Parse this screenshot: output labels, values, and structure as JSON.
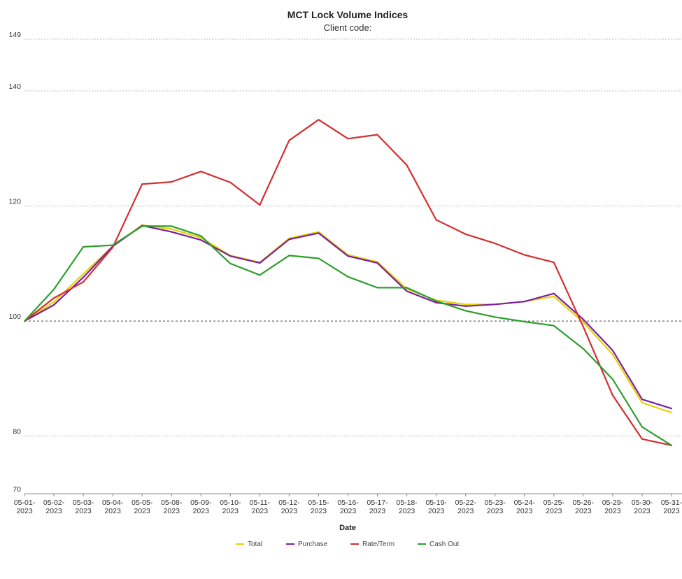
{
  "chart_data": {
    "type": "line",
    "title": "MCT Lock Volume Indices",
    "subtitle": "Client code:",
    "xlabel": "Date",
    "ylabel": "",
    "ylim": [
      70,
      149
    ],
    "yticks": [
      70,
      80,
      100,
      120,
      140,
      149
    ],
    "reference_line": 100,
    "grid": true,
    "legend_position": "bottom",
    "categories": [
      "05-01-2023",
      "05-02-2023",
      "05-03-2023",
      "05-04-2023",
      "05-05-2023",
      "05-08-2023",
      "05-09-2023",
      "05-10-2023",
      "05-11-2023",
      "05-12-2023",
      "05-15-2023",
      "05-16-2023",
      "05-17-2023",
      "05-18-2023",
      "05-19-2023",
      "05-22-2023",
      "05-23-2023",
      "05-24-2023",
      "05-25-2023",
      "05-26-2023",
      "05-29-2023",
      "05-30-2023",
      "05-31-2023"
    ],
    "series": [
      {
        "name": "Total",
        "color": "#e6d200",
        "values": [
          100,
          103.3,
          108.2,
          113.0,
          116.7,
          116.0,
          114.5,
          111.4,
          110.2,
          114.4,
          115.5,
          111.5,
          110.3,
          105.6,
          103.6,
          102.9,
          102.9,
          103.4,
          104.3,
          99.8,
          94.2,
          85.8,
          84.1
        ]
      },
      {
        "name": "Purchase",
        "color": "#7b1fa2",
        "values": [
          100,
          102.8,
          107.6,
          113.0,
          116.6,
          115.5,
          114.1,
          111.3,
          110.1,
          114.2,
          115.3,
          111.3,
          110.1,
          105.2,
          103.2,
          102.6,
          102.9,
          103.4,
          104.8,
          100.3,
          94.9,
          86.4,
          84.8
        ]
      },
      {
        "name": "Rate/Term",
        "color": "#d32f2f",
        "values": [
          100,
          104.0,
          106.8,
          112.8,
          123.8,
          124.2,
          126.0,
          124.1,
          120.2,
          131.4,
          135.0,
          131.7,
          132.4,
          127.1,
          117.6,
          115.1,
          113.5,
          111.5,
          110.2,
          99.0,
          87.1,
          79.5,
          78.4
        ]
      },
      {
        "name": "Cash Out",
        "color": "#2e9e2e",
        "values": [
          100,
          105.5,
          112.9,
          113.2,
          116.5,
          116.5,
          114.8,
          110.0,
          108.0,
          111.4,
          110.9,
          107.7,
          105.8,
          105.8,
          103.5,
          101.8,
          100.7,
          99.9,
          99.2,
          95.2,
          89.9,
          81.6,
          78.4
        ]
      }
    ]
  }
}
